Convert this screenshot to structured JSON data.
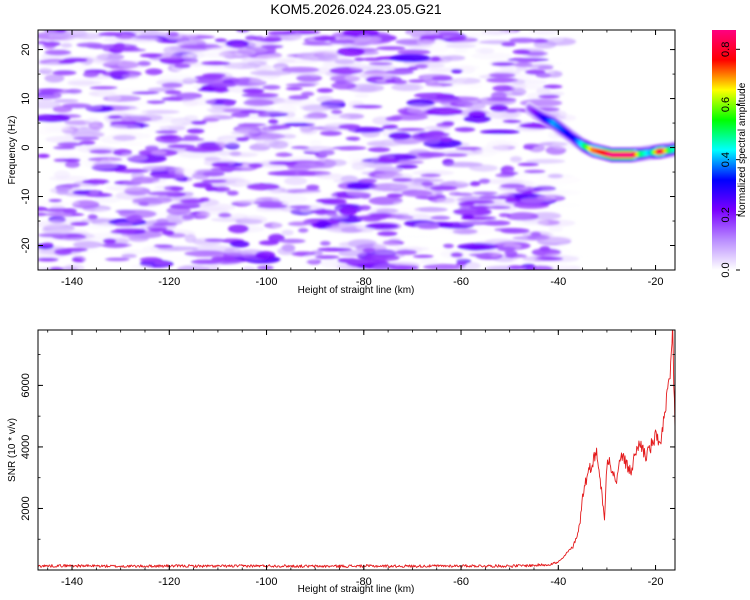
{
  "figure_title": "KOM5.2026.024.23.05.G21",
  "chart_data": [
    {
      "type": "heatmap",
      "title": "KOM5.2026.024.23.05.G21",
      "xlabel": "Height of straight line (km)",
      "ylabel": "Frequency (Hz)",
      "xlim": [
        -147,
        -16
      ],
      "ylim": [
        -25,
        24
      ],
      "x_ticks": [
        -140,
        -120,
        -100,
        -80,
        -60,
        -40,
        -20
      ],
      "y_ticks": [
        -20,
        -10,
        0,
        10,
        20
      ],
      "noise_region_x": [
        -147,
        -38
      ],
      "signal_track": {
        "x": [
          -46,
          -43,
          -41,
          -39,
          -37,
          -35,
          -33,
          -31,
          -29,
          -27,
          -25,
          -23,
          -21,
          -19,
          -17,
          -16
        ],
        "freq": [
          8,
          6,
          5,
          3.5,
          2,
          0.5,
          -0.5,
          -1,
          -1.5,
          -1.5,
          -1.5,
          -1.3,
          -1,
          -0.8,
          -0.5,
          -0.3
        ],
        "amplitude": [
          0.15,
          0.3,
          0.4,
          0.35,
          0.3,
          0.45,
          0.7,
          0.75,
          0.9,
          0.95,
          0.95,
          0.5,
          0.4,
          0.85,
          0.5,
          0.45
        ]
      },
      "colorbar": {
        "label": "Normalized spectral amplitude",
        "range": [
          0,
          0.87
        ],
        "ticks": [
          0.0,
          0.2,
          0.4,
          0.6,
          0.8
        ],
        "tick_labels": [
          "0.0",
          "0.2",
          "0.4",
          "0.6",
          "0.8"
        ],
        "colors": [
          "#ffffff",
          "#b98cff",
          "#7a00ff",
          "#0000ff",
          "#00ffff",
          "#00ff00",
          "#ffff00",
          "#ff0000",
          "#ff0080"
        ]
      }
    },
    {
      "type": "line",
      "xlabel": "Height of straight line (km)",
      "ylabel": "SNR (10 * v/v)",
      "xlim": [
        -147,
        -16
      ],
      "ylim": [
        0,
        7800
      ],
      "x_ticks": [
        -140,
        -120,
        -100,
        -80,
        -60,
        -40,
        -20
      ],
      "y_ticks": [
        2000,
        4000,
        6000
      ],
      "color": "#e41a1c",
      "series": [
        {
          "name": "SNR",
          "x": [
            -147,
            -140,
            -130,
            -120,
            -110,
            -100,
            -90,
            -80,
            -70,
            -60,
            -50,
            -45,
            -42,
            -40,
            -39,
            -38,
            -37,
            -36,
            -35.5,
            -35,
            -34.5,
            -34,
            -33.5,
            -33,
            -32.5,
            -32,
            -31.5,
            -31,
            -30.5,
            -30,
            -29.5,
            -29,
            -28,
            -27,
            -26,
            -25,
            -24,
            -23,
            -22,
            -21,
            -20,
            -19,
            -18.5,
            -18,
            -17.5,
            -17,
            -16.5,
            -16
          ],
          "values": [
            130,
            140,
            120,
            130,
            125,
            135,
            120,
            130,
            125,
            135,
            130,
            150,
            180,
            250,
            400,
            600,
            750,
            1200,
            1600,
            2400,
            2800,
            3100,
            3300,
            3500,
            3700,
            3800,
            3100,
            2400,
            1600,
            3500,
            3700,
            3200,
            2900,
            3800,
            3400,
            3200,
            3900,
            4100,
            3700,
            4000,
            4300,
            4200,
            4600,
            5100,
            5700,
            6200,
            7800,
            4600
          ]
        }
      ]
    }
  ]
}
